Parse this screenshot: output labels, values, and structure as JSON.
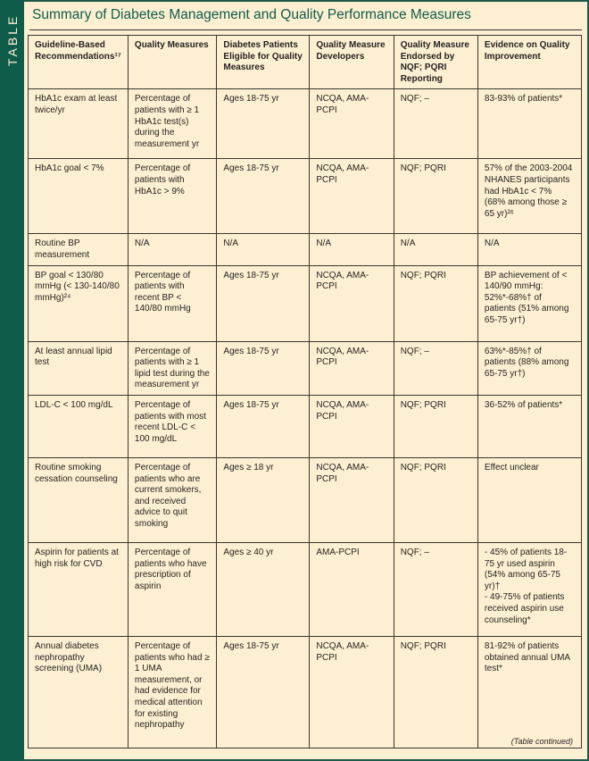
{
  "sidebar_label": "TABLE",
  "title": "Summary of Diabetes Management and Quality Performance Measures",
  "columns": [
    "Guideline-Based Recommendations¹⁷",
    "Quality Measures",
    "Diabetes Patients Eligible for Quality Measures",
    "Quality Measure Developers",
    "Quality Measure Endorsed by NQF; PQRI Reporting",
    "Evidence on Quality Improvement"
  ],
  "rows": [
    [
      "HbA1c exam at least twice/yr",
      "Percentage of patients with ≥ 1 HbA1c test(s) during the measurement yr",
      "Ages 18-75 yr",
      "NCQA, AMA-PCPI",
      "NQF; –",
      "83-93% of patients*"
    ],
    [
      "HbA1c goal < 7%",
      "Percentage of patients with HbA1c > 9%",
      "Ages 18-75 yr",
      "NCQA, AMA-PCPI",
      "NQF; PQRI",
      "57% of the 2003-2004 NHANES participants had HbA1c < 7% (68% among those ≥ 65 yr)²⁶"
    ],
    [
      "Routine BP measurement",
      "N/A",
      "N/A",
      "N/A",
      "N/A",
      "N/A"
    ],
    [
      "BP goal < 130/80 mmHg (< 130-140/80 mmHg)²⁴",
      "Percentage of patients with recent BP < 140/80 mmHg",
      "Ages 18-75 yr",
      "NCQA, AMA-PCPI",
      "NQF; PQRI",
      "BP achievement of < 140/90 mmHg: 52%*-68%† of patients (51% among 65-75 yr†)"
    ],
    [
      "At least annual lipid test",
      "Percentage of patients with ≥ 1 lipid test during the measurement yr",
      "Ages 18-75 yr",
      "NCQA, AMA-PCPI",
      "NQF; –",
      "63%*-85%† of patients (88% among 65-75 yr†)"
    ],
    [
      "LDL-C < 100 mg/dL",
      "Percentage of patients with most recent LDL-C < 100 mg/dL",
      "Ages 18-75 yr",
      "NCQA, AMA-PCPI",
      "NQF; PQRI",
      "36-52% of patients*"
    ],
    [
      "Routine smoking cessation counseling",
      "Percentage of patients who are current smokers, and received advice to quit smoking",
      "Ages ≥ 18 yr",
      "NCQA, AMA-PCPI",
      "NQF; PQRI",
      "Effect unclear"
    ],
    [
      "Aspirin for patients at high risk for CVD",
      "Percentage of patients who have prescription of aspirin",
      "Ages ≥ 40 yr",
      "AMA-PCPI",
      "NQF; –",
      "- 45% of patients 18-75 yr used aspirin (54% among 65-75 yr)†\n- 49-75% of patients received aspirin use counseling*"
    ],
    [
      "Annual diabetes nephropathy screening (UMA)",
      "Percentage of patients who had ≥ 1 UMA measurement, or had evidence for medical attention for existing nephropathy",
      "Ages 18-75 yr",
      "NCQA, AMA-PCPI",
      "NQF; PQRI",
      "81-92% of patients obtained annual UMA test*"
    ]
  ],
  "footer": "(Table continued)"
}
